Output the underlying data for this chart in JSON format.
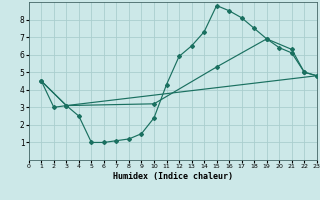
{
  "xlabel": "Humidex (Indice chaleur)",
  "bg_color": "#cce8e8",
  "grid_color": "#aacece",
  "line_color": "#1a7060",
  "xlim": [
    0,
    23
  ],
  "ylim": [
    0,
    9
  ],
  "xticks": [
    0,
    1,
    2,
    3,
    4,
    5,
    6,
    7,
    8,
    9,
    10,
    11,
    12,
    13,
    14,
    15,
    16,
    17,
    18,
    19,
    20,
    21,
    22,
    23
  ],
  "yticks": [
    1,
    2,
    3,
    4,
    5,
    6,
    7,
    8
  ],
  "curve1_x": [
    1,
    2,
    3,
    4,
    5,
    6,
    7,
    8,
    9,
    10,
    11,
    12,
    13,
    14,
    15,
    16,
    17,
    18,
    19,
    20,
    21,
    22,
    23
  ],
  "curve1_y": [
    4.5,
    3.0,
    3.1,
    2.5,
    1.0,
    1.0,
    1.1,
    1.2,
    1.5,
    2.4,
    4.3,
    5.9,
    6.5,
    7.3,
    8.8,
    8.5,
    8.1,
    7.5,
    6.9,
    6.4,
    6.1,
    5.0,
    4.8
  ],
  "curve2_x": [
    1,
    3,
    10,
    15,
    19,
    21,
    22,
    23
  ],
  "curve2_y": [
    4.5,
    3.1,
    3.2,
    5.3,
    6.9,
    6.3,
    5.0,
    4.8
  ],
  "curve3_x": [
    1,
    3,
    23
  ],
  "curve3_y": [
    4.5,
    3.1,
    4.8
  ]
}
